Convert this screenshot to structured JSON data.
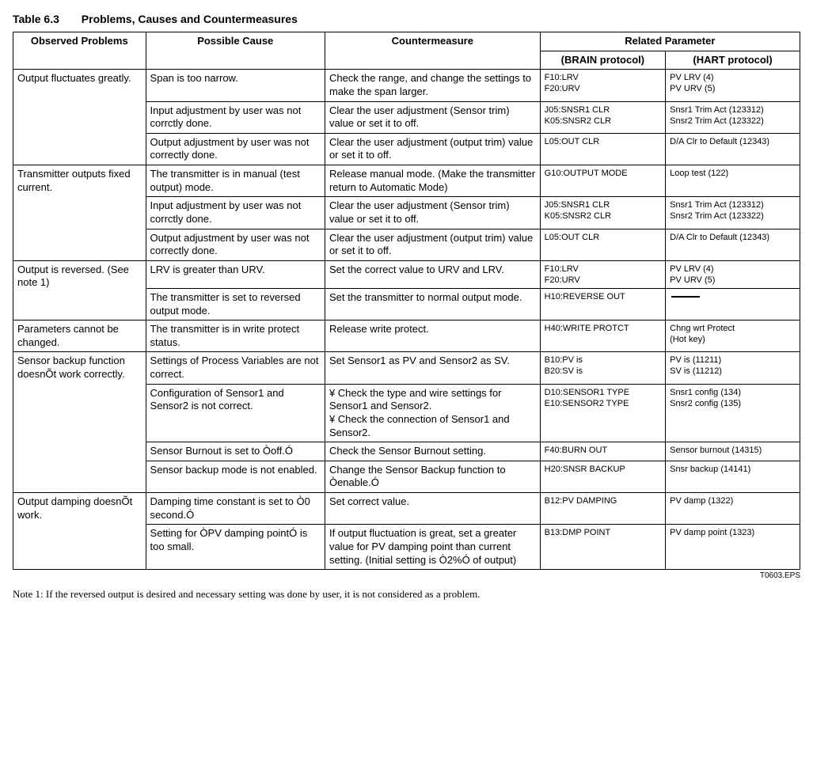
{
  "title": {
    "num": "Table 6.3",
    "text": "Problems, Causes and Countermeasures"
  },
  "headers": {
    "problems": "Observed Problems",
    "cause": "Possible Cause",
    "counter": "Countermeasure",
    "related": "Related Parameter",
    "brain": "(BRAIN protocol)",
    "hart": "(HART protocol)"
  },
  "rows": [
    {
      "problem": "Output fluctuates greatly.",
      "problem_rowspan": 3,
      "cause": "Span is too narrow.",
      "counter": "Check the range, and change the settings to make the span larger.",
      "brain": "F10:LRV\nF20:URV",
      "hart": "PV LRV (4)\nPV URV (5)"
    },
    {
      "cause": "Input adjustment by user was not corrctly done.",
      "counter": "Clear the user adjustment (Sensor trim) value or set it to off.",
      "brain": "J05:SNSR1 CLR\nK05:SNSR2 CLR",
      "hart": "Snsr1 Trim Act (123312)\nSnsr2 Trim Act (123322)"
    },
    {
      "cause": "Output adjustment by user was not correctly done.",
      "counter": "Clear the user adjustment (output trim) value or set it to off.",
      "brain": "L05:OUT CLR",
      "hart": "D/A Clr to Default (12343)"
    },
    {
      "problem": "Transmitter outputs fixed current.",
      "problem_rowspan": 3,
      "cause": "The transmitter is in manual (test output) mode.",
      "counter": "Release manual mode. (Make the transmitter return to Automatic Mode)",
      "brain": "G10:OUTPUT MODE",
      "hart": "Loop test (122)"
    },
    {
      "cause": "Input adjustment by user was not corrctly done.",
      "counter": "Clear the user adjustment (Sensor trim) value or set it to off.",
      "brain": "J05:SNSR1 CLR\nK05:SNSR2 CLR",
      "hart": "Snsr1 Trim Act (123312)\nSnsr2 Trim Act (123322)"
    },
    {
      "cause": "Output adjustment by user was not correctly done.",
      "counter": "Clear the user adjustment (output trim) value or set it to off.",
      "brain": "L05:OUT CLR",
      "hart": "D/A Clr to Default (12343)"
    },
    {
      "problem": "Output is reversed. (See note 1)",
      "problem_rowspan": 2,
      "cause": "LRV is greater than URV.",
      "counter": "Set the correct value to URV and LRV.",
      "brain": "F10:LRV\nF20:URV",
      "hart": "PV LRV (4)\nPV URV (5)"
    },
    {
      "cause": "The transmitter is set to reversed output mode.",
      "counter": "Set the transmitter to normal output mode.",
      "brain": "H10:REVERSE OUT",
      "hart_dash": true
    },
    {
      "problem": "Parameters cannot be changed.",
      "problem_rowspan": 1,
      "cause": "The transmitter is in write protect status.",
      "counter": "Release write protect.",
      "brain": "H40:WRITE PROTCT",
      "hart": "Chng wrt Protect\n (Hot key)"
    },
    {
      "problem": "Sensor backup function doesnÕt work correctly.",
      "problem_rowspan": 4,
      "cause": "Settings of Process Variables are not correct.",
      "counter": "Set Sensor1 as PV and Sensor2 as SV.",
      "brain": "B10:PV is\nB20:SV is",
      "hart": "PV is (11211)\nSV is (11212)"
    },
    {
      "cause": "Configuration of Sensor1 and Sensor2 is not correct.",
      "counter": "¥ Check the type and wire settings for Sensor1 and Sensor2.\n¥ Check the connection of Sensor1 and Sensor2.",
      "brain": "D10:SENSOR1 TYPE\nE10:SENSOR2 TYPE",
      "hart": "Snsr1 config (134)\nSnsr2 config (135)"
    },
    {
      "cause": "Sensor Burnout is set to Òoff.Ó",
      "counter": "Check the Sensor Burnout setting.",
      "brain": "F40:BURN OUT",
      "hart": "Sensor burnout (14315)"
    },
    {
      "cause": "Sensor backup mode is not enabled.",
      "counter": "Change the Sensor Backup function to Òenable.Ó",
      "brain": "H20:SNSR BACKUP",
      "hart": "Snsr backup (14141)"
    },
    {
      "problem": "Output damping doesnÕt work.",
      "problem_rowspan": 2,
      "cause": "Damping time constant is set to Ò0 second.Ó",
      "counter": "Set correct value.",
      "brain": "B12:PV DAMPING",
      "hart": "PV damp (1322)"
    },
    {
      "cause": "Setting for ÒPV damping pointÓ is too small.",
      "counter": "If output fluctuation is great, set a greater value for PV damping point than current setting. (Initial setting is Ò2%Ó of output)",
      "brain": "B13:DMP POINT",
      "hart": "PV damp point (1323)"
    }
  ],
  "note": "Note 1: If the reversed output is desired and necessary setting was done by user, it is not considered as a problem.",
  "eps": "T0603.EPS"
}
